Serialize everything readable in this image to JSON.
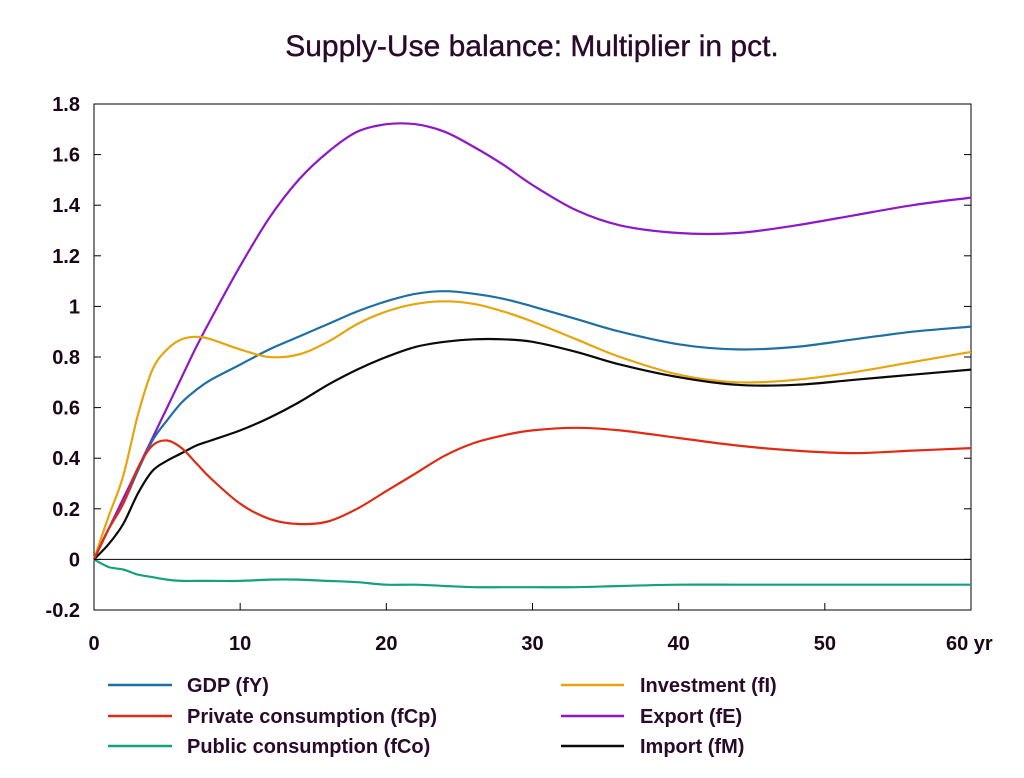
{
  "chart_data": {
    "type": "line",
    "title": "Supply-Use balance: Multiplier in pct.",
    "xlabel": "",
    "ylabel": "",
    "x_unit_label": "yr",
    "xlim": [
      0,
      60
    ],
    "ylim": [
      -0.2,
      1.8
    ],
    "x_ticks": [
      0,
      10,
      20,
      30,
      40,
      50,
      60
    ],
    "x_tick_labels": [
      "0",
      "10",
      "20",
      "30",
      "40",
      "50",
      "60 yr"
    ],
    "y_ticks": [
      -0.2,
      0,
      0.2,
      0.4,
      0.6,
      0.8,
      1,
      1.2,
      1.4,
      1.6,
      1.8
    ],
    "y_tick_labels": [
      "-0.2",
      "0",
      "0.2",
      "0.4",
      "0.6",
      "0.8",
      "1",
      "1.2",
      "1.4",
      "1.6",
      "1.8"
    ],
    "grid": false,
    "zero_line": true,
    "legend_position": "bottom",
    "x": [
      0,
      1,
      2,
      3,
      4,
      5,
      6,
      7,
      8,
      10,
      12,
      14,
      16,
      18,
      20,
      22,
      24,
      26,
      28,
      30,
      33,
      36,
      40,
      44,
      48,
      52,
      56,
      60
    ],
    "series": [
      {
        "name": "GDP (fY)",
        "color": "#1f6fa5",
        "values": [
          0,
          0.12,
          0.22,
          0.35,
          0.47,
          0.55,
          0.62,
          0.67,
          0.71,
          0.77,
          0.83,
          0.88,
          0.93,
          0.98,
          1.02,
          1.05,
          1.06,
          1.05,
          1.03,
          1.0,
          0.95,
          0.9,
          0.85,
          0.83,
          0.84,
          0.87,
          0.9,
          0.92
        ]
      },
      {
        "name": "Private consumption (fCp)",
        "color": "#e02a14",
        "values": [
          0,
          0.12,
          0.22,
          0.36,
          0.45,
          0.47,
          0.44,
          0.38,
          0.32,
          0.22,
          0.16,
          0.14,
          0.15,
          0.2,
          0.27,
          0.34,
          0.41,
          0.46,
          0.49,
          0.51,
          0.52,
          0.51,
          0.48,
          0.45,
          0.43,
          0.42,
          0.43,
          0.44
        ]
      },
      {
        "name": "Public consumption (fCo)",
        "color": "#15a07f",
        "values": [
          0,
          -0.03,
          -0.04,
          -0.06,
          -0.07,
          -0.08,
          -0.085,
          -0.085,
          -0.085,
          -0.085,
          -0.08,
          -0.08,
          -0.085,
          -0.09,
          -0.1,
          -0.1,
          -0.105,
          -0.11,
          -0.11,
          -0.11,
          -0.11,
          -0.105,
          -0.1,
          -0.1,
          -0.1,
          -0.1,
          -0.1,
          -0.1
        ]
      },
      {
        "name": "Investment (fI)",
        "color": "#e6a50c",
        "values": [
          0,
          0.17,
          0.33,
          0.57,
          0.75,
          0.83,
          0.87,
          0.88,
          0.87,
          0.83,
          0.8,
          0.81,
          0.86,
          0.93,
          0.98,
          1.01,
          1.02,
          1.01,
          0.98,
          0.94,
          0.87,
          0.8,
          0.73,
          0.7,
          0.71,
          0.74,
          0.78,
          0.82
        ]
      },
      {
        "name": "Export (fE)",
        "color": "#8e18c6",
        "values": [
          0,
          0.12,
          0.24,
          0.36,
          0.48,
          0.6,
          0.72,
          0.84,
          0.95,
          1.16,
          1.35,
          1.5,
          1.61,
          1.69,
          1.72,
          1.72,
          1.69,
          1.63,
          1.56,
          1.48,
          1.38,
          1.32,
          1.29,
          1.29,
          1.32,
          1.36,
          1.4,
          1.43
        ]
      },
      {
        "name": "Import (fM)",
        "color": "#0a0a0a",
        "values": [
          0,
          0.06,
          0.14,
          0.26,
          0.35,
          0.39,
          0.42,
          0.45,
          0.47,
          0.51,
          0.56,
          0.62,
          0.69,
          0.75,
          0.8,
          0.84,
          0.86,
          0.87,
          0.87,
          0.86,
          0.82,
          0.77,
          0.72,
          0.69,
          0.69,
          0.71,
          0.73,
          0.75
        ]
      }
    ]
  },
  "legend": {
    "left": [
      "GDP (fY)",
      "Private consumption (fCp)",
      "Public consumption (fCo)"
    ],
    "right": [
      "Investment (fI)",
      "Export (fE)",
      "Import (fM)"
    ]
  }
}
